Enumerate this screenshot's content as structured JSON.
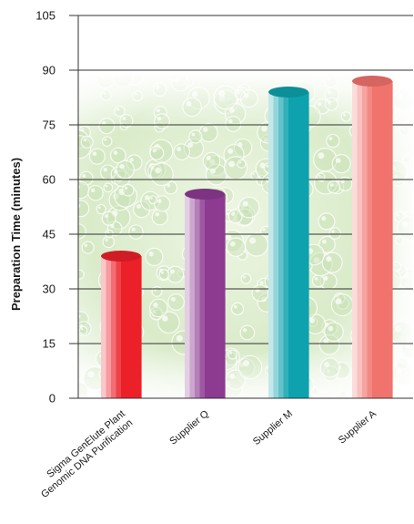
{
  "chart_data": {
    "type": "bar",
    "categories": [
      [
        "Sigma GenElute Plant",
        "Genomic DNA Purification"
      ],
      [
        "Supplier Q"
      ],
      [
        "Supplier M"
      ],
      [
        "Supplier A"
      ]
    ],
    "values": [
      39,
      56,
      84,
      87
    ],
    "bar_colors": [
      "#ec2029",
      "#8d3a91",
      "#0ea2ae",
      "#f1736d"
    ],
    "xlabel": "",
    "ylabel": "Preparation Time (minutes)",
    "ylim": [
      0,
      105
    ],
    "yticks": [
      0,
      15,
      30,
      45,
      60,
      75,
      90,
      105
    ],
    "grid": "horizontal",
    "background": "bubbles"
  }
}
